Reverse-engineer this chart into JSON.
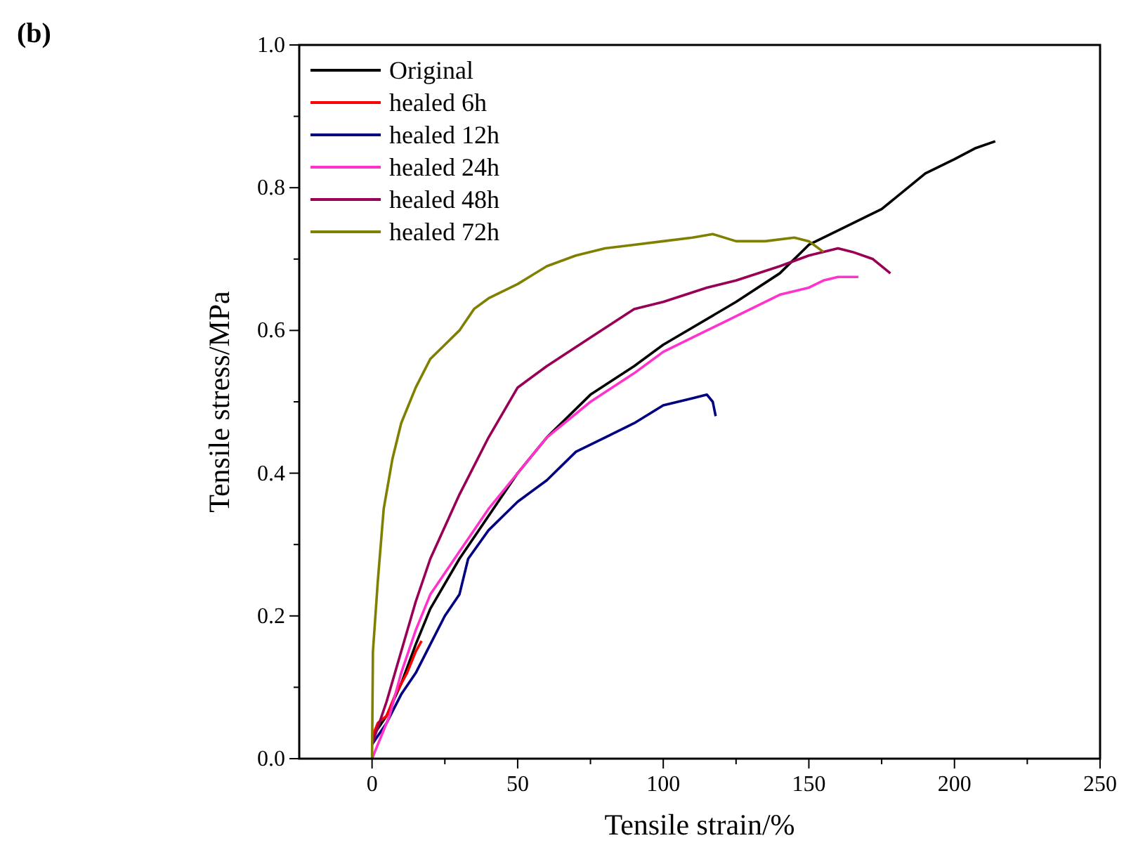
{
  "chart_data": {
    "type": "line",
    "xlabel": "Tensile strain/%",
    "ylabel": "Tensile stress/MPa",
    "annotations": [
      "(b)"
    ],
    "xlim": [
      -25,
      250
    ],
    "ylim": [
      0,
      1.0
    ],
    "xticks": [
      0,
      {
        "value": 25,
        "label": null
      },
      50,
      {
        "value": 75,
        "label": null
      },
      100,
      {
        "value": 125,
        "label": null
      },
      150,
      {
        "value": 175,
        "label": null
      },
      200,
      {
        "value": 225,
        "label": null
      },
      250
    ],
    "yticks": [
      {
        "value": 0,
        "label": "0.0"
      },
      {
        "value": 0.1,
        "label": null
      },
      0.2,
      {
        "value": 0.3,
        "label": null
      },
      0.4,
      {
        "value": 0.5,
        "label": null
      },
      0.6,
      {
        "value": 0.7,
        "label": null
      },
      0.8,
      {
        "value": 0.9,
        "label": null
      },
      {
        "value": 1.0,
        "label": "1.0"
      }
    ],
    "grid": false,
    "legend": "top left",
    "line_style": "solid",
    "marker": "none",
    "series": [
      {
        "name": "Original",
        "color": "#000000",
        "x": [
          0,
          5,
          10,
          15,
          20,
          30,
          40,
          50,
          60,
          75,
          90,
          100,
          125,
          140,
          150,
          160,
          175,
          190,
          200,
          207,
          214
        ],
        "values": [
          0.03,
          0.06,
          0.105,
          0.16,
          0.21,
          0.28,
          0.34,
          0.4,
          0.45,
          0.51,
          0.55,
          0.58,
          0.64,
          0.68,
          0.72,
          0.74,
          0.77,
          0.82,
          0.84,
          0.855,
          0.865
        ]
      },
      {
        "name": "healed 6h",
        "color": "#ff0000",
        "x": [
          0,
          2,
          5,
          8,
          12,
          15,
          17
        ],
        "values": [
          0.03,
          0.05,
          0.06,
          0.09,
          0.12,
          0.15,
          0.165
        ]
      },
      {
        "name": "healed 12h",
        "color": "#000080",
        "x": [
          0,
          5,
          10,
          15,
          20,
          25,
          30,
          33,
          40,
          45,
          50,
          60,
          70,
          80,
          90,
          100,
          110,
          115,
          117,
          118
        ],
        "values": [
          0.02,
          0.05,
          0.09,
          0.12,
          0.16,
          0.2,
          0.23,
          0.28,
          0.32,
          0.34,
          0.36,
          0.39,
          0.43,
          0.45,
          0.47,
          0.495,
          0.505,
          0.51,
          0.5,
          0.48
        ]
      },
      {
        "name": "healed 24h",
        "color": "#ff33cc",
        "x": [
          0,
          3,
          6,
          10,
          15,
          20,
          30,
          40,
          50,
          60,
          75,
          90,
          100,
          115,
          125,
          140,
          150,
          155,
          160,
          167
        ],
        "values": [
          0.0,
          0.03,
          0.06,
          0.12,
          0.18,
          0.23,
          0.29,
          0.35,
          0.4,
          0.45,
          0.5,
          0.54,
          0.57,
          0.6,
          0.62,
          0.65,
          0.66,
          0.67,
          0.675,
          0.675
        ]
      },
      {
        "name": "healed 48h",
        "color": "#990055",
        "x": [
          0,
          5,
          10,
          15,
          20,
          30,
          40,
          50,
          60,
          75,
          90,
          100,
          115,
          125,
          140,
          150,
          160,
          165,
          172,
          178
        ],
        "values": [
          0.02,
          0.08,
          0.15,
          0.22,
          0.28,
          0.37,
          0.45,
          0.52,
          0.55,
          0.59,
          0.63,
          0.64,
          0.66,
          0.67,
          0.69,
          0.705,
          0.715,
          0.71,
          0.7,
          0.68
        ]
      },
      {
        "name": "healed 72h",
        "color": "#808000",
        "x": [
          0,
          0.3,
          2,
          4,
          7,
          10,
          15,
          20,
          25,
          30,
          35,
          40,
          50,
          60,
          70,
          80,
          90,
          100,
          110,
          117,
          125,
          135,
          145,
          150,
          155
        ],
        "values": [
          0.0,
          0.15,
          0.25,
          0.35,
          0.42,
          0.47,
          0.52,
          0.56,
          0.58,
          0.6,
          0.63,
          0.645,
          0.665,
          0.69,
          0.705,
          0.715,
          0.72,
          0.725,
          0.73,
          0.735,
          0.725,
          0.725,
          0.73,
          0.725,
          0.71
        ]
      }
    ]
  }
}
